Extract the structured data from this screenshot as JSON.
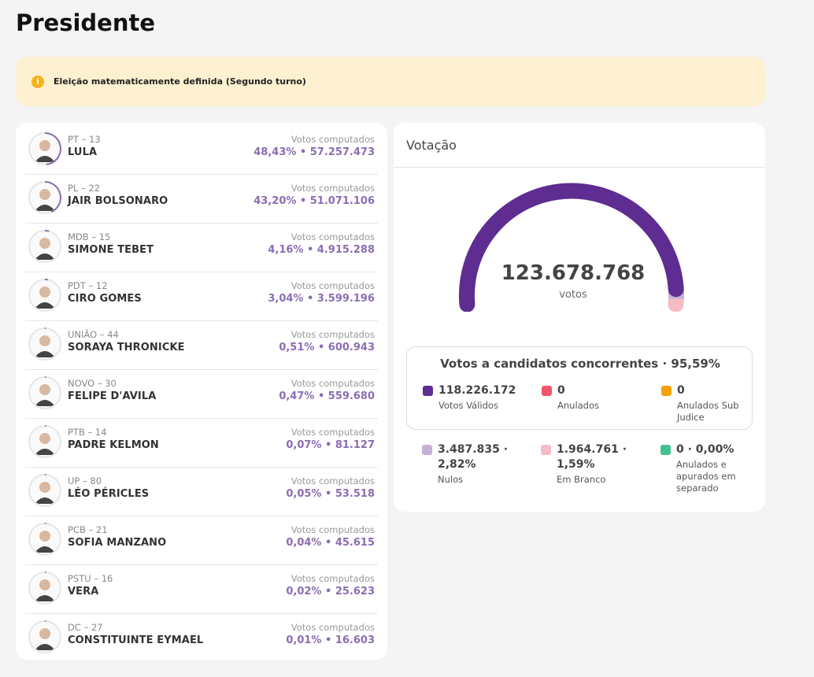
{
  "page": {
    "title": "Presidente"
  },
  "alert": {
    "text": "Eleição matematicamente definida (Segundo turno)",
    "icon": "info-icon"
  },
  "candidates": [
    {
      "party": "PT – 13",
      "name": "LULA",
      "votes_label": "Votos computados",
      "value": "48,43%  •  57.257.473",
      "pct": 48.43
    },
    {
      "party": "PL – 22",
      "name": "JAIR BOLSONARO",
      "votes_label": "Votos computados",
      "value": "43,20%  •  51.071.106",
      "pct": 43.2
    },
    {
      "party": "MDB – 15",
      "name": "SIMONE TEBET",
      "votes_label": "Votos computados",
      "value": "4,16%  •  4.915.288",
      "pct": 4.16
    },
    {
      "party": "PDT – 12",
      "name": "CIRO GOMES",
      "votes_label": "Votos computados",
      "value": "3,04%  •  3.599.196",
      "pct": 3.04
    },
    {
      "party": "UNIÃO – 44",
      "name": "SORAYA THRONICKE",
      "votes_label": "Votos computados",
      "value": "0,51%  •  600.943",
      "pct": 0.51
    },
    {
      "party": "NOVO – 30",
      "name": "FELIPE D'AVILA",
      "votes_label": "Votos computados",
      "value": "0,47%  •  559.680",
      "pct": 0.47
    },
    {
      "party": "PTB – 14",
      "name": "PADRE KELMON",
      "votes_label": "Votos computados",
      "value": "0,07%  •  81.127",
      "pct": 0.07
    },
    {
      "party": "UP – 80",
      "name": "LÉO PÉRICLES",
      "votes_label": "Votos computados",
      "value": "0,05%  •  53.518",
      "pct": 0.05
    },
    {
      "party": "PCB – 21",
      "name": "SOFIA MANZANO",
      "votes_label": "Votos computados",
      "value": "0,04%  •  45.615",
      "pct": 0.04
    },
    {
      "party": "PSTU – 16",
      "name": "VERA",
      "votes_label": "Votos computados",
      "value": "0,02%  •  25.623",
      "pct": 0.02
    },
    {
      "party": "DC – 27",
      "name": "CONSTITUINTE EYMAEL",
      "votes_label": "Votos computados",
      "value": "0,01%  •  16.603",
      "pct": 0.01
    }
  ],
  "votacao": {
    "title": "Votação",
    "total": "123.678.768",
    "total_unit": "votos",
    "summary_title": "Votos a candidatos concorrentes · 95,59%",
    "gauge_fractions": {
      "validos": 0.9559,
      "nulos": 0.0282,
      "brancos": 0.0159
    },
    "stats": [
      {
        "value": "118.226.172",
        "label": "Votos Válidos",
        "color": "#5f2d91"
      },
      {
        "value": "0",
        "label": "Anulados",
        "color": "#f0566b"
      },
      {
        "value": "0",
        "label": "Anulados Sub Judice",
        "color": "#f5a100"
      },
      {
        "value": "3.487.835 · 2,82%",
        "label": "Nulos",
        "color": "#c7b0d8"
      },
      {
        "value": "1.964.761 · 1,59%",
        "label": "Em Branco",
        "color": "#f6bcc5"
      },
      {
        "value": "0 · 0,00%",
        "label": "Anulados e apurados em separado",
        "color": "#43c08f"
      }
    ]
  }
}
